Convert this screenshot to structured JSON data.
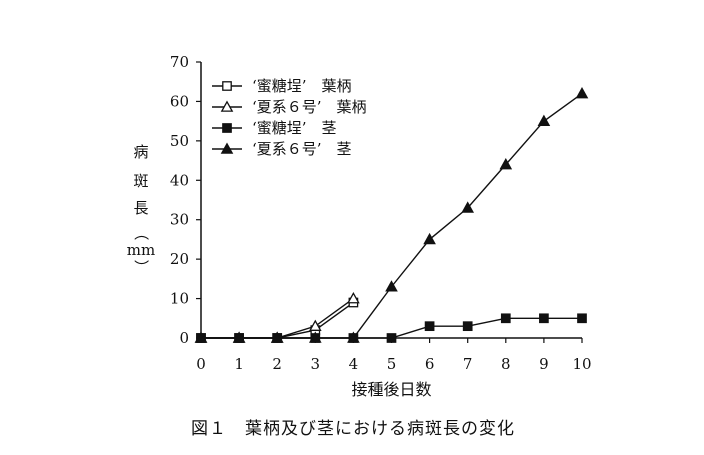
{
  "chart_data": {
    "type": "line",
    "x": [
      0,
      1,
      2,
      3,
      4,
      5,
      6,
      7,
      8,
      9,
      10
    ],
    "xlabel": "接種後日数",
    "ylabel_chars": [
      "病",
      "斑",
      "長",
      "（",
      "mm",
      "）"
    ],
    "ylim": [
      0,
      70
    ],
    "yticks": [
      0,
      10,
      20,
      30,
      40,
      50,
      60,
      70
    ],
    "xticks": [
      0,
      1,
      2,
      3,
      4,
      5,
      6,
      7,
      8,
      9,
      10
    ],
    "legend_position": "top-left",
    "caption": "図１　葉柄及び茎における病斑長の変化",
    "series": [
      {
        "name": "‘蜜糖埕’　葉柄",
        "marker": "square-open",
        "x": [
          0,
          1,
          2,
          3,
          4
        ],
        "values": [
          0,
          0,
          0,
          2,
          9
        ]
      },
      {
        "name": "‘夏系６号’　葉柄",
        "marker": "triangle-open",
        "x": [
          0,
          1,
          2,
          3,
          4
        ],
        "values": [
          0,
          0,
          0,
          3,
          10
        ]
      },
      {
        "name": "‘蜜糖埕’　茎",
        "marker": "square-filled",
        "x": [
          0,
          1,
          2,
          3,
          4,
          5,
          6,
          7,
          8,
          9,
          10
        ],
        "values": [
          0,
          0,
          0,
          0,
          0,
          0,
          3,
          3,
          5,
          5,
          5
        ]
      },
      {
        "name": "‘夏系６号’　茎",
        "marker": "triangle-filled",
        "x": [
          0,
          1,
          2,
          3,
          4,
          5,
          6,
          7,
          8,
          9,
          10
        ],
        "values": [
          0,
          0,
          0,
          0,
          0,
          13,
          25,
          33,
          44,
          55,
          62
        ]
      }
    ]
  }
}
